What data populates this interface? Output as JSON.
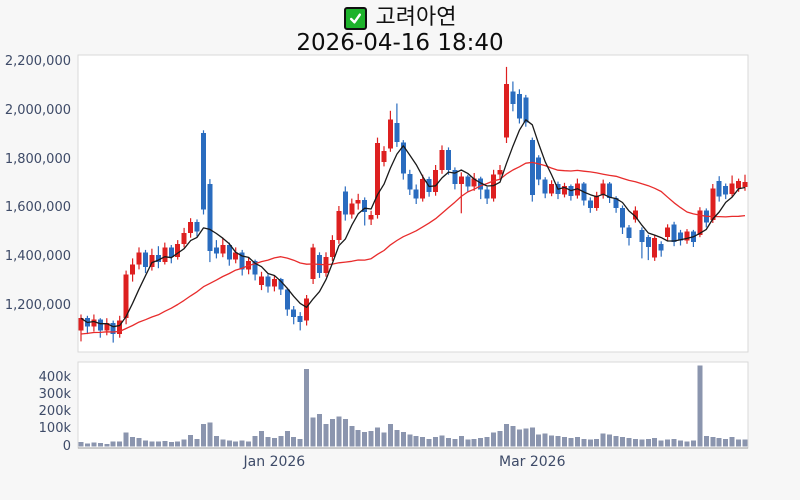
{
  "header": {
    "checkbox_icon": "green-checkbox-icon",
    "title": "고려아연",
    "datetime": "2026-04-16 18:40"
  },
  "colors": {
    "background": "#f7f7f7",
    "plot_background": "#ffffff",
    "plot_border": "#d9d9d9",
    "up_candle": "#dd2020",
    "down_candle": "#2a6cbf",
    "ma_short": "#1a1a1a",
    "ma_long": "#e82c2c",
    "volume_bar": "#8b95ae",
    "axis_label": "#3e4b68",
    "volume_baseline": "#9a9a9a",
    "checkbox_green": "#1db32b"
  },
  "chart_data": {
    "type": "candlestick",
    "title": "고려아연",
    "subtitle": "2026-04-16 18:40",
    "price_unit": "KRW",
    "value_scale": 1000,
    "volume_scale": 1000,
    "grid": false,
    "legend": "none",
    "price_axis": {
      "ylim_thousands": [
        1010,
        2230
      ],
      "ticks": [
        {
          "value": 2200,
          "label": "2,200,000"
        },
        {
          "value": 2000,
          "label": "2,000,000"
        },
        {
          "value": 1800,
          "label": "1,800,000"
        },
        {
          "value": 1600,
          "label": "1,600,000"
        },
        {
          "value": 1400,
          "label": "1,400,000"
        },
        {
          "value": 1200,
          "label": "1,200,000"
        }
      ]
    },
    "volume_axis": {
      "ylim_thousands": [
        0,
        500
      ],
      "ticks": [
        {
          "value": 400,
          "label": "400k"
        },
        {
          "value": 300,
          "label": "300k"
        },
        {
          "value": 200,
          "label": "200k"
        },
        {
          "value": 100,
          "label": "100k"
        },
        {
          "value": 0,
          "label": "0"
        }
      ]
    },
    "x_axis": {
      "ticks": [
        {
          "candle_index": 30,
          "label": "Jan 2026"
        },
        {
          "candle_index": 70,
          "label": "Mar 2026"
        }
      ]
    },
    "moving_averages": [
      {
        "name": "short-ma",
        "period": 5,
        "color": "#1a1a1a"
      },
      {
        "name": "long-ma",
        "period": 25,
        "color": "#e82c2c",
        "seed_value": 1080,
        "seed_count": 12
      }
    ],
    "candles_format": [
      "open",
      "high",
      "low",
      "close",
      "volume_k"
    ],
    "candles": [
      [
        1100,
        1165,
        1055,
        1150,
        25
      ],
      [
        1150,
        1160,
        1085,
        1115,
        18
      ],
      [
        1115,
        1165,
        1095,
        1145,
        22
      ],
      [
        1145,
        1150,
        1070,
        1100,
        20
      ],
      [
        1100,
        1150,
        1080,
        1130,
        15
      ],
      [
        1130,
        1140,
        1050,
        1085,
        28
      ],
      [
        1085,
        1160,
        1070,
        1140,
        30
      ],
      [
        1150,
        1345,
        1125,
        1330,
        80
      ],
      [
        1330,
        1395,
        1300,
        1370,
        55
      ],
      [
        1370,
        1440,
        1350,
        1420,
        50
      ],
      [
        1420,
        1430,
        1335,
        1360,
        35
      ],
      [
        1360,
        1435,
        1345,
        1410,
        30
      ],
      [
        1410,
        1445,
        1355,
        1380,
        28
      ],
      [
        1380,
        1460,
        1370,
        1440,
        32
      ],
      [
        1440,
        1450,
        1375,
        1400,
        25
      ],
      [
        1400,
        1470,
        1390,
        1455,
        30
      ],
      [
        1455,
        1520,
        1440,
        1500,
        40
      ],
      [
        1500,
        1560,
        1480,
        1545,
        68
      ],
      [
        1545,
        1555,
        1485,
        1505,
        45
      ],
      [
        1910,
        1920,
        1575,
        1595,
        130
      ],
      [
        1700,
        1720,
        1380,
        1425,
        140
      ],
      [
        1440,
        1470,
        1395,
        1415,
        60
      ],
      [
        1415,
        1480,
        1400,
        1450,
        40
      ],
      [
        1450,
        1460,
        1365,
        1390,
        35
      ],
      [
        1390,
        1440,
        1375,
        1420,
        30
      ],
      [
        1420,
        1430,
        1325,
        1350,
        35
      ],
      [
        1350,
        1400,
        1330,
        1385,
        28
      ],
      [
        1385,
        1390,
        1305,
        1330,
        60
      ],
      [
        1285,
        1340,
        1265,
        1320,
        90
      ],
      [
        1320,
        1330,
        1255,
        1280,
        55
      ],
      [
        1280,
        1325,
        1260,
        1310,
        50
      ],
      [
        1310,
        1315,
        1245,
        1268,
        60
      ],
      [
        1268,
        1275,
        1160,
        1185,
        90
      ],
      [
        1185,
        1200,
        1125,
        1155,
        55
      ],
      [
        1160,
        1175,
        1100,
        1135,
        45
      ],
      [
        1140,
        1245,
        1120,
        1230,
        450
      ],
      [
        1310,
        1455,
        1290,
        1440,
        170
      ],
      [
        1410,
        1420,
        1315,
        1335,
        190
      ],
      [
        1335,
        1420,
        1320,
        1400,
        130
      ],
      [
        1400,
        1490,
        1385,
        1470,
        160
      ],
      [
        1470,
        1610,
        1455,
        1590,
        175
      ],
      [
        1670,
        1690,
        1550,
        1575,
        160
      ],
      [
        1575,
        1640,
        1558,
        1620,
        120
      ],
      [
        1620,
        1660,
        1595,
        1635,
        95
      ],
      [
        1635,
        1645,
        1530,
        1585,
        85
      ],
      [
        1555,
        1590,
        1532,
        1572,
        90
      ],
      [
        1572,
        1890,
        1558,
        1868,
        110
      ],
      [
        1790,
        1855,
        1772,
        1835,
        80
      ],
      [
        1845,
        2000,
        1832,
        1965,
        130
      ],
      [
        1950,
        2030,
        1852,
        1872,
        95
      ],
      [
        1870,
        1880,
        1718,
        1742,
        85
      ],
      [
        1742,
        1758,
        1655,
        1678,
        70
      ],
      [
        1678,
        1698,
        1618,
        1640,
        60
      ],
      [
        1640,
        1738,
        1628,
        1720,
        55
      ],
      [
        1720,
        1730,
        1648,
        1668,
        45
      ],
      [
        1668,
        1778,
        1652,
        1758,
        55
      ],
      [
        1758,
        1858,
        1742,
        1840,
        65
      ],
      [
        1840,
        1850,
        1738,
        1758,
        50
      ],
      [
        1758,
        1768,
        1678,
        1700,
        45
      ],
      [
        1700,
        1748,
        1580,
        1730,
        60
      ],
      [
        1730,
        1738,
        1668,
        1690,
        40
      ],
      [
        1690,
        1745,
        1672,
        1722,
        45
      ],
      [
        1722,
        1730,
        1638,
        1678,
        50
      ],
      [
        1678,
        1688,
        1618,
        1640,
        55
      ],
      [
        1640,
        1758,
        1628,
        1738,
        80
      ],
      [
        1738,
        1778,
        1718,
        1758,
        90
      ],
      [
        1890,
        2180,
        1868,
        2110,
        130
      ],
      [
        2080,
        2120,
        1998,
        2028,
        120
      ],
      [
        2068,
        2088,
        1948,
        1968,
        100
      ],
      [
        2055,
        2065,
        1935,
        1952,
        105
      ],
      [
        1880,
        1890,
        1628,
        1655,
        110
      ],
      [
        1808,
        1818,
        1695,
        1718,
        70
      ],
      [
        1718,
        1728,
        1642,
        1662,
        75
      ],
      [
        1662,
        1715,
        1650,
        1700,
        65
      ],
      [
        1700,
        1710,
        1638,
        1658,
        60
      ],
      [
        1658,
        1705,
        1645,
        1692,
        55
      ],
      [
        1692,
        1698,
        1632,
        1652,
        50
      ],
      [
        1652,
        1722,
        1640,
        1702,
        55
      ],
      [
        1702,
        1708,
        1612,
        1632,
        45
      ],
      [
        1632,
        1645,
        1582,
        1602,
        40
      ],
      [
        1602,
        1668,
        1590,
        1652,
        45
      ],
      [
        1652,
        1718,
        1640,
        1702,
        75
      ],
      [
        1702,
        1708,
        1622,
        1642,
        70
      ],
      [
        1642,
        1650,
        1582,
        1602,
        60
      ],
      [
        1602,
        1612,
        1495,
        1522,
        55
      ],
      [
        1522,
        1532,
        1448,
        1478,
        50
      ],
      [
        1555,
        1608,
        1542,
        1592,
        45
      ],
      [
        1512,
        1522,
        1395,
        1462,
        40
      ],
      [
        1482,
        1492,
        1388,
        1442,
        45
      ],
      [
        1398,
        1492,
        1385,
        1478,
        50
      ],
      [
        1455,
        1465,
        1402,
        1428,
        35
      ],
      [
        1482,
        1535,
        1468,
        1522,
        40
      ],
      [
        1535,
        1545,
        1445,
        1462,
        45
      ],
      [
        1502,
        1512,
        1448,
        1468,
        35
      ],
      [
        1468,
        1515,
        1455,
        1505,
        30
      ],
      [
        1505,
        1512,
        1442,
        1462,
        35
      ],
      [
        1492,
        1605,
        1482,
        1592,
        470
      ],
      [
        1592,
        1600,
        1522,
        1542,
        60
      ],
      [
        1552,
        1700,
        1540,
        1682,
        55
      ],
      [
        1712,
        1732,
        1628,
        1648,
        50
      ],
      [
        1692,
        1702,
        1638,
        1658,
        45
      ],
      [
        1658,
        1735,
        1648,
        1702,
        55
      ],
      [
        1682,
        1722,
        1668,
        1712,
        40
      ],
      [
        1688,
        1738,
        1672,
        1708,
        42
      ]
    ]
  }
}
